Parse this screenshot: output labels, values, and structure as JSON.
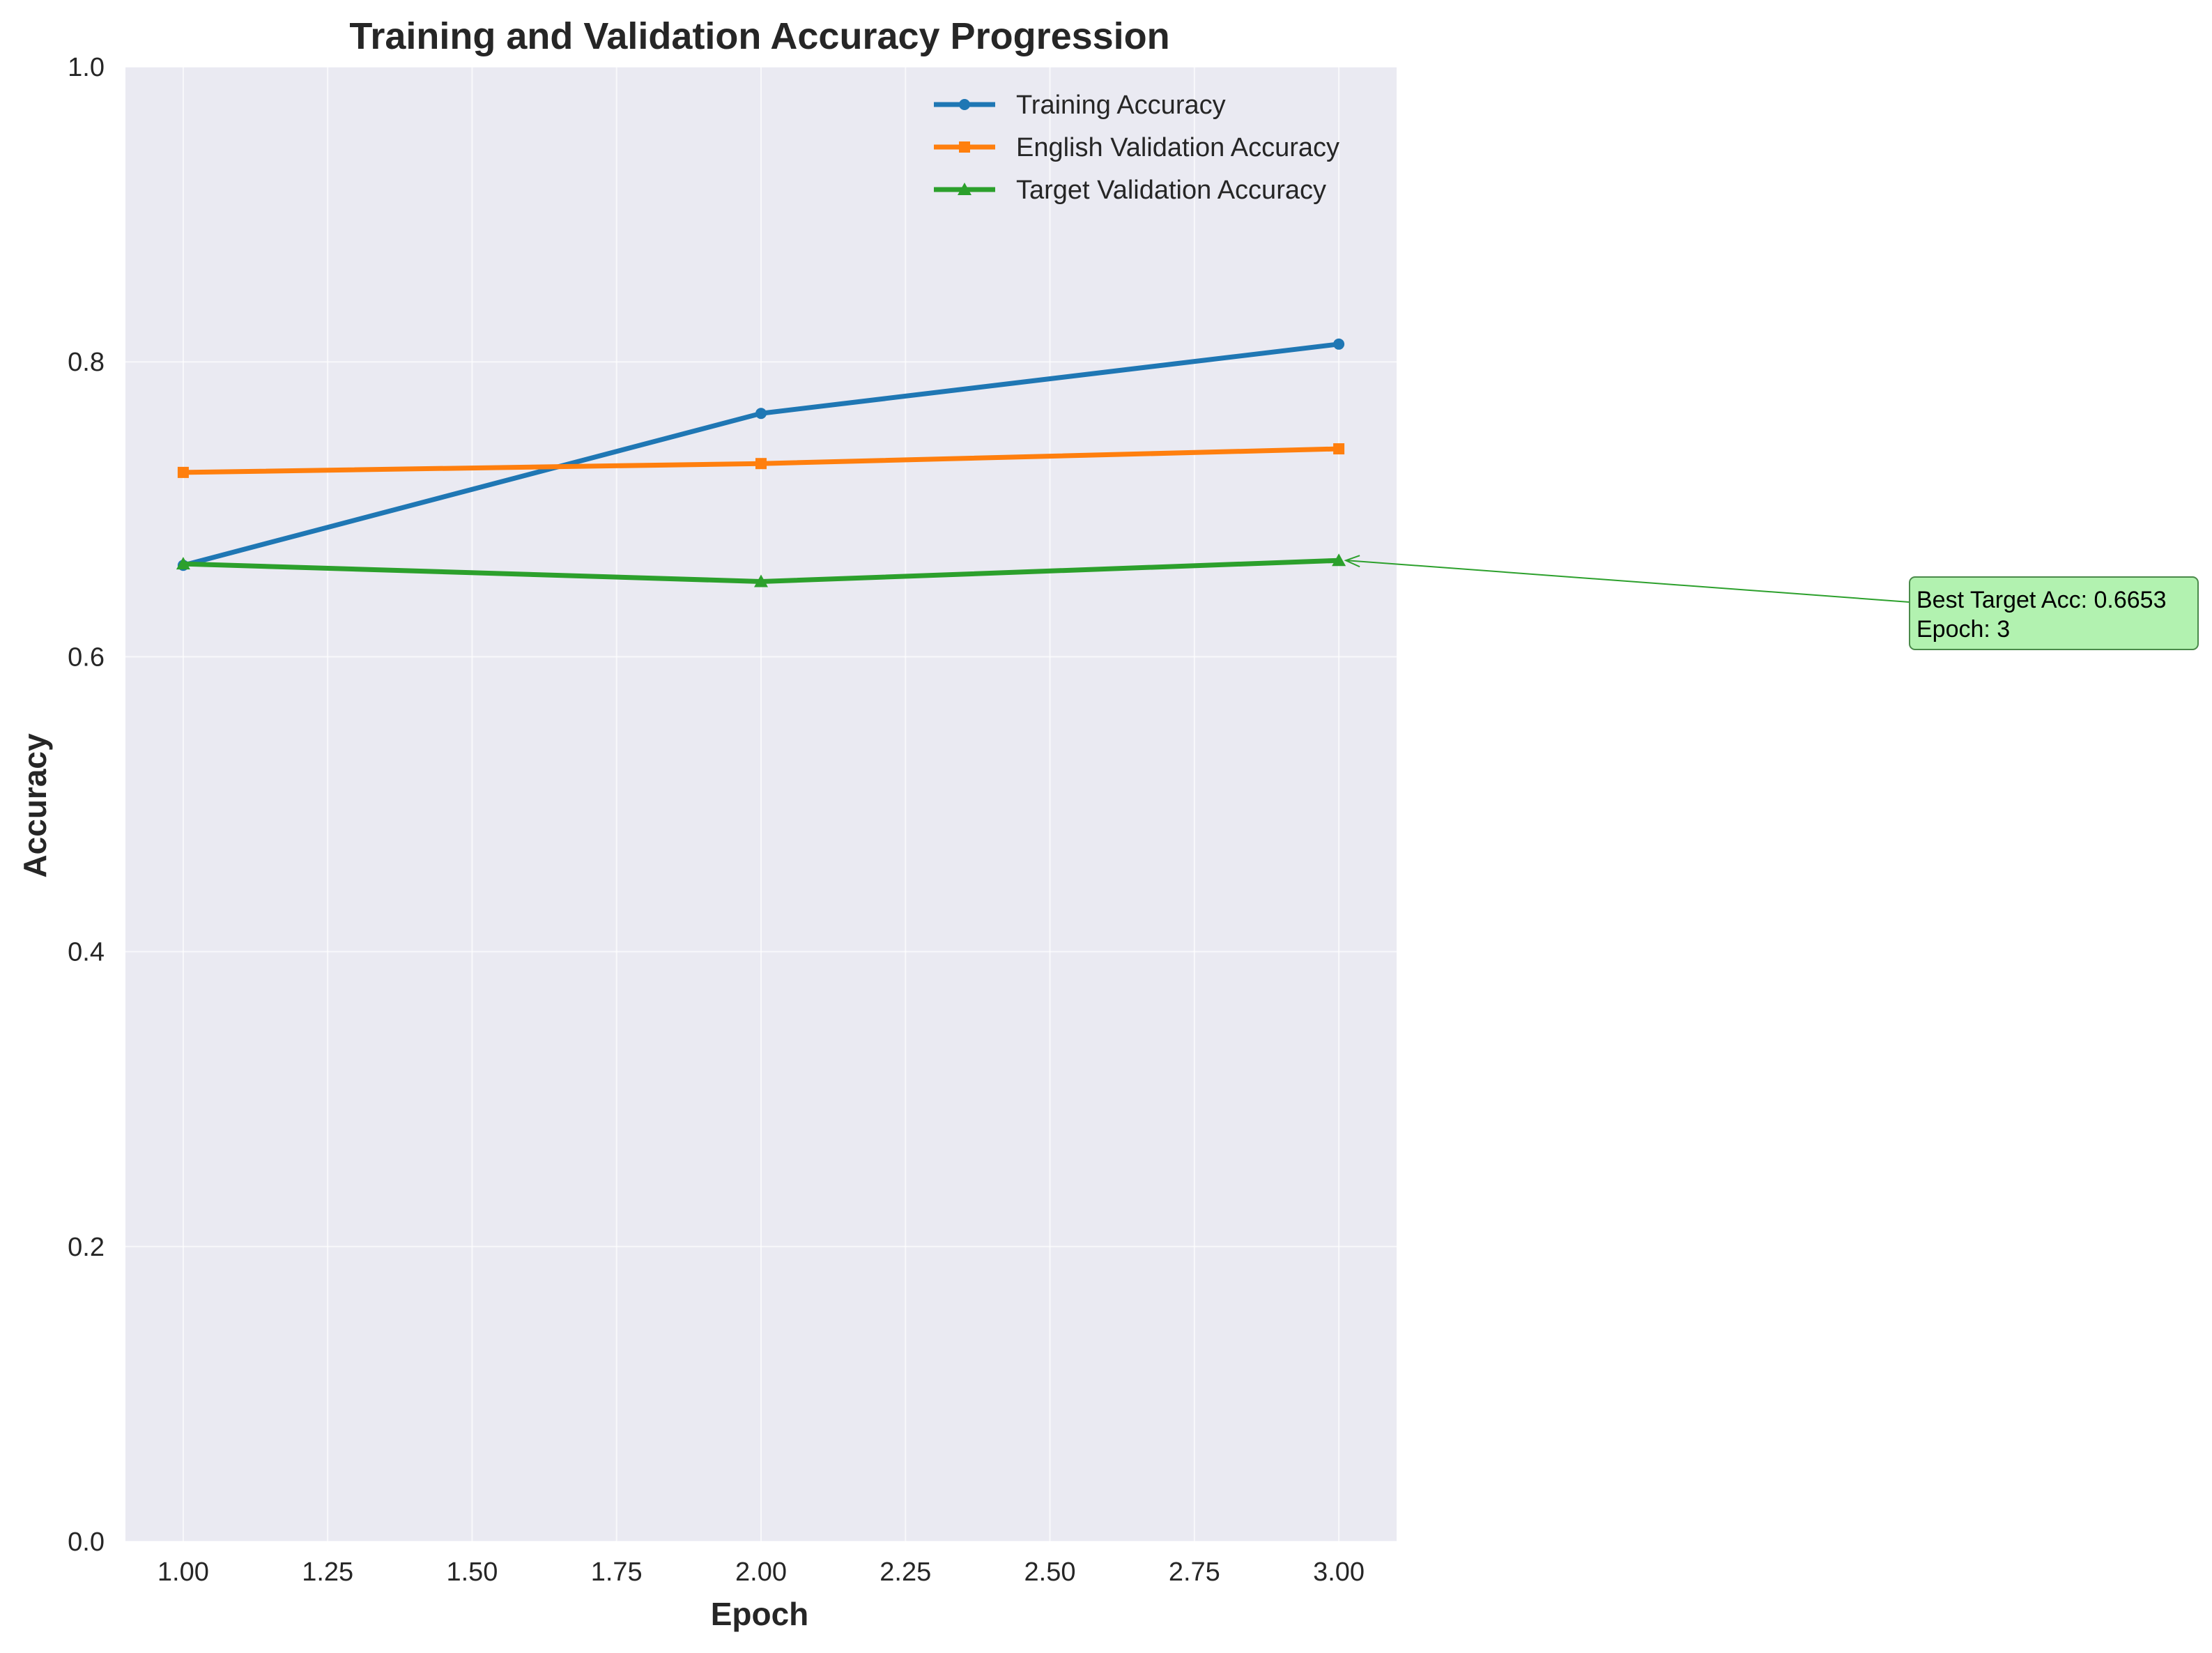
{
  "chart_data": {
    "type": "line",
    "title": "Training and Validation Accuracy Progression",
    "xlabel": "Epoch",
    "ylabel": "Accuracy",
    "xlim": [
      0.9,
      3.1
    ],
    "ylim": [
      0.0,
      1.0
    ],
    "xticks": [
      "1.00",
      "1.25",
      "1.50",
      "1.75",
      "2.00",
      "2.25",
      "2.50",
      "2.75",
      "3.00"
    ],
    "yticks": [
      "0.0",
      "0.2",
      "0.4",
      "0.6",
      "0.8",
      "1.0"
    ],
    "x": [
      1,
      2,
      3
    ],
    "series": [
      {
        "name": "Training Accuracy",
        "values": [
          0.662,
          0.765,
          0.812
        ],
        "color": "#1f77b4",
        "marker": "circle"
      },
      {
        "name": "English Validation Accuracy",
        "values": [
          0.725,
          0.731,
          0.741
        ],
        "color": "#ff7f0e",
        "marker": "square"
      },
      {
        "name": "Target Validation Accuracy",
        "values": [
          0.663,
          0.651,
          0.6653
        ],
        "color": "#2ca02c",
        "marker": "triangle"
      }
    ],
    "grid": true,
    "legend_position": "top-right",
    "annotation": {
      "lines": [
        "Best Target Acc: 0.6653",
        "Epoch: 3"
      ],
      "x": 3,
      "y": 0.6653,
      "box_color": "#b2f2b0",
      "arrow_color": "#2ca02c"
    },
    "background_color": "#eaeaf2"
  }
}
